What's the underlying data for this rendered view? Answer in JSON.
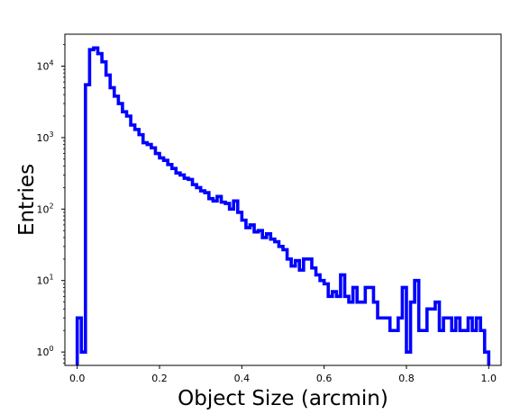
{
  "chart_data": {
    "type": "step",
    "title": "",
    "xlabel": "Object Size (arcmin)",
    "ylabel": "Entries",
    "xlim": [
      -0.03,
      1.03
    ],
    "ylim": [
      0.65,
      28000
    ],
    "yscale": "log",
    "grid": false,
    "series_color": "#0000ff",
    "xticks": [
      0.0,
      0.2,
      0.4,
      0.6,
      0.8,
      1.0
    ],
    "xtick_labels": [
      "0.0",
      "0.2",
      "0.4",
      "0.6",
      "0.8",
      "1.0"
    ],
    "yticks": [
      1,
      10,
      100,
      1000,
      10000
    ],
    "ytick_labels": [
      "10",
      "10",
      "10",
      "10",
      "10"
    ],
    "ytick_exponents": [
      "0",
      "1",
      "2",
      "3",
      "4"
    ],
    "bin_edges": [
      0.0,
      0.01,
      0.02,
      0.03,
      0.04,
      0.05,
      0.06,
      0.07,
      0.08,
      0.09,
      0.1,
      0.11,
      0.12,
      0.13,
      0.14,
      0.15,
      0.16,
      0.17,
      0.18,
      0.19,
      0.2,
      0.21,
      0.22,
      0.23,
      0.24,
      0.25,
      0.26,
      0.27,
      0.28,
      0.29,
      0.3,
      0.31,
      0.32,
      0.33,
      0.34,
      0.35,
      0.36,
      0.37,
      0.38,
      0.39,
      0.4,
      0.41,
      0.42,
      0.43,
      0.44,
      0.45,
      0.46,
      0.47,
      0.48,
      0.49,
      0.5,
      0.51,
      0.52,
      0.53,
      0.54,
      0.55,
      0.56,
      0.57,
      0.58,
      0.59,
      0.6,
      0.61,
      0.62,
      0.63,
      0.64,
      0.65,
      0.66,
      0.67,
      0.68,
      0.69,
      0.7,
      0.71,
      0.72,
      0.73,
      0.74,
      0.75,
      0.76,
      0.77,
      0.78,
      0.79,
      0.8,
      0.81,
      0.82,
      0.83,
      0.84,
      0.85,
      0.86,
      0.87,
      0.88,
      0.89,
      0.9,
      0.91,
      0.92,
      0.93,
      0.94,
      0.95,
      0.96,
      0.97,
      0.98,
      0.99,
      1.0
    ],
    "values": [
      3,
      1,
      5500,
      17000,
      18000,
      15000,
      11500,
      7500,
      5000,
      3800,
      3000,
      2300,
      2000,
      1500,
      1300,
      1100,
      850,
      800,
      720,
      600,
      520,
      480,
      420,
      370,
      320,
      300,
      270,
      260,
      220,
      200,
      180,
      170,
      140,
      130,
      150,
      125,
      120,
      100,
      130,
      90,
      70,
      55,
      60,
      48,
      50,
      40,
      45,
      38,
      35,
      30,
      27,
      20,
      16,
      19,
      14,
      20,
      20,
      15,
      12,
      10,
      9,
      6,
      7,
      6,
      12,
      6,
      5,
      8,
      5,
      5,
      8,
      8,
      5,
      3,
      3,
      3,
      2,
      2,
      3,
      8,
      1,
      5,
      10,
      2,
      2,
      4,
      4,
      5,
      2,
      3,
      3,
      2,
      3,
      2,
      2,
      3,
      2,
      3,
      2,
      1
    ]
  }
}
